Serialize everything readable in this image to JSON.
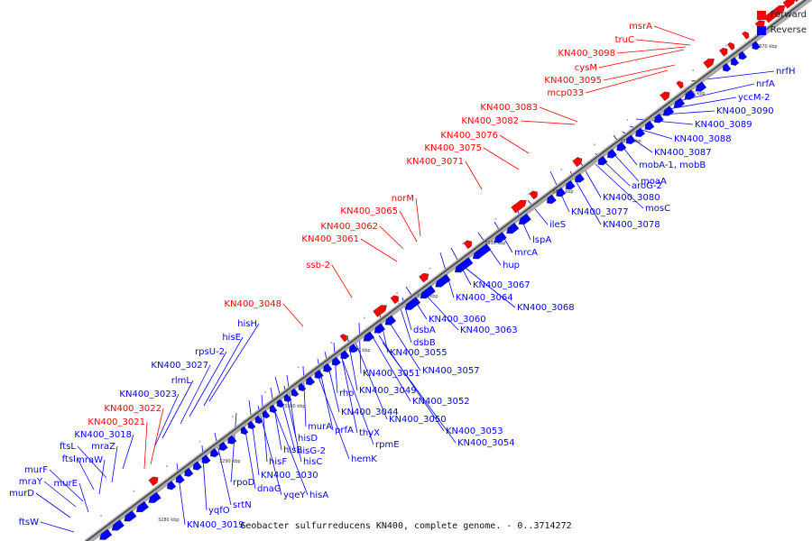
{
  "caption": "Geobacter sulfurreducens KN400, complete genome. - 0..3714272",
  "legend": [
    {
      "label": "Forward",
      "color": "#ff0000"
    },
    {
      "label": "Reverse",
      "color": "#0000ff"
    }
  ],
  "colors": {
    "forward": "#ff0000",
    "reverse": "#0000ff",
    "backbone": "#888888"
  },
  "scale_ticks": [
    "3280 kbp",
    "3290 kbp",
    "3300 kbp",
    "3310 kbp",
    "3320 kbp",
    "3330 kbp",
    "3340 kbp",
    "3350 kbp",
    "3360 kbp",
    "3370 kbp"
  ],
  "forward_labels": [
    "msrA",
    "truC",
    "KN400_3098",
    "cysM",
    "KN400_3095",
    "mcp033",
    "KN400_3083",
    "KN400_3082",
    "KN400_3076",
    "KN400_3075",
    "KN400_3071",
    "norM",
    "KN400_3065",
    "KN400_3062",
    "KN400_3061",
    "ssb-2",
    "KN400_3048",
    "KN400_3022",
    "KN400_3021"
  ],
  "reverse_left_labels": [
    "hisH",
    "hisE",
    "rpsU-2",
    "KN400_3027",
    "rlmL",
    "KN400_3023",
    "KN400_3018",
    "ftsL",
    "mraZ",
    "ftsI",
    "mraW",
    "murF",
    "mraY",
    "murE",
    "murD",
    "ftsW"
  ],
  "reverse_right_labels": [
    "nrfH",
    "nrfA",
    "yccM-2",
    "KN400_3090",
    "KN400_3089",
    "KN400_3088",
    "KN400_3087",
    "mobA-1, mobB",
    "moaA",
    "aroG-2",
    "KN400_3080",
    "mosC",
    "KN400_3077",
    "KN400_3078",
    "ileS",
    "lspA",
    "mrcA",
    "hup",
    "KN400_3067",
    "KN400_3064",
    "KN400_3068",
    "KN400_3060",
    "KN400_3063",
    "dsbA",
    "dsbB",
    "KN400_3055",
    "KN400_3051",
    "KN400_3057",
    "KN400_3049",
    "rho",
    "KN400_3052",
    "KN400_3044",
    "KN400_3050",
    "thyX",
    "prfA",
    "murA",
    "rpmE",
    "hisD",
    "hisG-2",
    "KN400_3053",
    "KN400_3054",
    "hisB",
    "hemK",
    "hisF",
    "hisC",
    "KN400_3030",
    "rpoD",
    "dnaG",
    "yqeY",
    "hisA",
    "srtN",
    "yqfO",
    "KN400_3019"
  ]
}
